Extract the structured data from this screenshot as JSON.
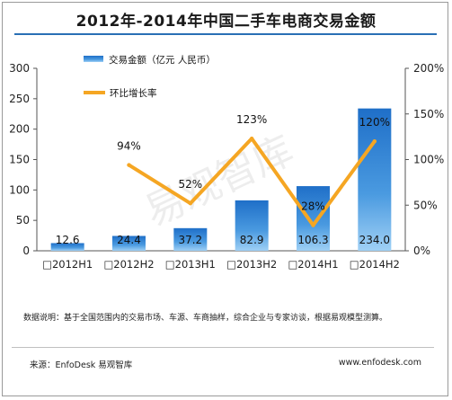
{
  "title": "2012年-2014年中国二手车电商交易金额",
  "watermark": "易观智库",
  "chart_data": {
    "type": "bar",
    "categories": [
      "□2012H1",
      "□2012H2",
      "□2013H1",
      "□2013H2",
      "□2014H1",
      "□2014H2"
    ],
    "series": [
      {
        "name": "交易金额（亿元 人民币）",
        "type": "bar",
        "axis": "left",
        "values": [
          12.6,
          24.4,
          37.2,
          82.9,
          106.3,
          234.0
        ],
        "labels": [
          "12.6",
          "24.4",
          "37.2",
          "82.9",
          "106.3",
          "234.0"
        ],
        "color": "#2b7fd0"
      },
      {
        "name": "环比增长率",
        "type": "line",
        "axis": "right",
        "values": [
          null,
          94,
          52,
          123,
          28,
          120
        ],
        "labels": [
          "",
          "94%",
          "52%",
          "123%",
          "28%",
          "120%"
        ],
        "color": "#f5a623"
      }
    ],
    "y_left": {
      "min": 0,
      "max": 300,
      "ticks": [
        "0",
        "50",
        "100",
        "150",
        "200",
        "250",
        "300"
      ]
    },
    "y_right": {
      "min": 0,
      "max": 200,
      "ticks": [
        "0%",
        "50%",
        "100%",
        "150%",
        "200%"
      ]
    },
    "grid": false,
    "legend": "top-left"
  },
  "note": "数据说明：基于全国范围内的交易市场、车源、车商抽样，综合企业与专家访谈，根据易观模型测算。",
  "source": "来源：EnfoDesk 易观智库",
  "website": "www.enfodesk.com"
}
